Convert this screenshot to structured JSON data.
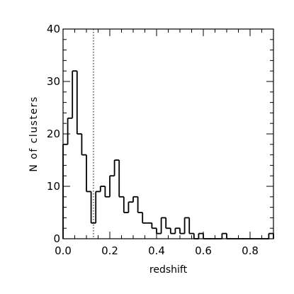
{
  "chart_data": {
    "type": "bar",
    "style": "step-histogram",
    "xlabel": "redshift",
    "ylabel": "N of clusters",
    "xlim": [
      0.0,
      0.9
    ],
    "ylim": [
      0,
      40
    ],
    "x_ticks": [
      "0.0",
      "0.2",
      "0.4",
      "0.6",
      "0.8"
    ],
    "y_ticks": [
      "0",
      "10",
      "20",
      "30",
      "40"
    ],
    "bin_width": 0.02,
    "bin_start": 0.0,
    "values": [
      18,
      23,
      32,
      20,
      16,
      9,
      3,
      9,
      10,
      8,
      12,
      15,
      8,
      5,
      7,
      8,
      5,
      3,
      3,
      2,
      1,
      4,
      2,
      1,
      2,
      1,
      4,
      1,
      0,
      1,
      0,
      0,
      0,
      0,
      1,
      0,
      0,
      0,
      0,
      0,
      0,
      0,
      0,
      0,
      1
    ],
    "reference_line": {
      "x": 0.13,
      "style": "dotted"
    },
    "grid": false,
    "colors": {
      "line": "#000000",
      "background": "#ffffff"
    }
  }
}
